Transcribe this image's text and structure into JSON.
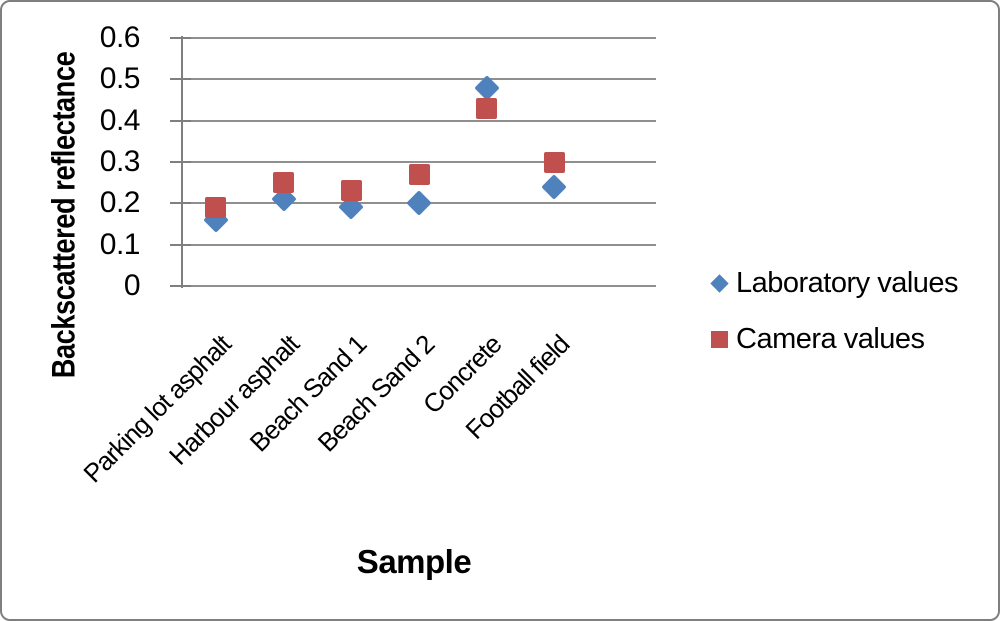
{
  "chart_data": {
    "type": "scatter",
    "title": "",
    "xlabel": "Sample",
    "ylabel": "Backscattered reflectance",
    "categories": [
      "Parking lot asphalt",
      "Harbour asphalt",
      "Beach Sand 1",
      "Beach Sand 2",
      "Concrete",
      "Football field"
    ],
    "series": [
      {
        "name": "Laboratory values",
        "marker": "diamond",
        "color": "#4F81BD",
        "values": [
          0.16,
          0.21,
          0.19,
          0.2,
          0.48,
          0.24
        ]
      },
      {
        "name": "Camera values",
        "marker": "square",
        "color": "#C0504D",
        "values": [
          0.19,
          0.25,
          0.23,
          0.27,
          0.43,
          0.3
        ]
      }
    ],
    "ylim": [
      0,
      0.6
    ],
    "ytick_step": 0.1,
    "ytick_labels": [
      "0",
      "0.1",
      "0.2",
      "0.3",
      "0.4",
      "0.5",
      "0.6"
    ],
    "grid": true,
    "legend_position": "right",
    "gridline_color": "#8f8f8f",
    "axis_color": "#7f7f7f",
    "frame_color": "#7f7f7f"
  }
}
